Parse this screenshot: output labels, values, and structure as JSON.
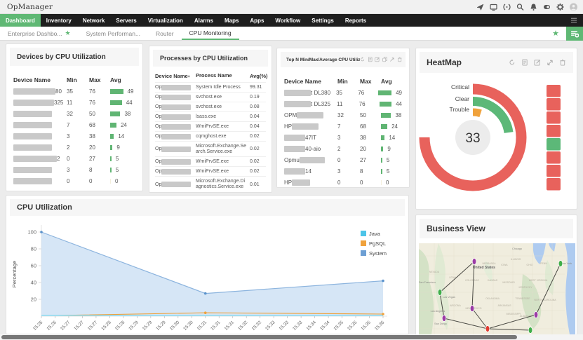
{
  "app": {
    "title": "OpManager"
  },
  "topbar": {
    "icons": [
      "send-icon",
      "monitor-icon",
      "sync-icon",
      "search-icon",
      "bell-icon",
      "video-icon",
      "gear-icon",
      "avatar-icon"
    ]
  },
  "nav": {
    "items": [
      "Dashboard",
      "Inventory",
      "Network",
      "Servers",
      "Virtualization",
      "Alarms",
      "Maps",
      "Apps",
      "Workflow",
      "Settings",
      "Reports"
    ],
    "active": "Dashboard"
  },
  "subtabs": [
    {
      "label": "Enterprise Dashbo...",
      "starred": true,
      "active": false
    },
    {
      "label": "System Performan...",
      "starred": false,
      "active": false
    },
    {
      "label": "Router",
      "starred": false,
      "active": false
    },
    {
      "label": "CPU Monitoring",
      "starred": false,
      "active": true
    }
  ],
  "accent_green": "#5fb874",
  "widgets": {
    "devices": {
      "title": "Devices by CPU Utilization",
      "columns": [
        "Device Name",
        "Min",
        "Max",
        "Avg"
      ],
      "rows": [
        {
          "name_prefix": "",
          "name_suffix": "80",
          "mask_w": 60,
          "min": 35,
          "max": 76,
          "avg": 49
        },
        {
          "name_prefix": "",
          "name_suffix": "325",
          "mask_w": 58,
          "min": 11,
          "max": 76,
          "avg": 44
        },
        {
          "name_prefix": "",
          "name_suffix": "",
          "mask_w": 55,
          "min": 32,
          "max": 50,
          "avg": 38
        },
        {
          "name_prefix": "",
          "name_suffix": "",
          "mask_w": 55,
          "min": 7,
          "max": 68,
          "avg": 24
        },
        {
          "name_prefix": "",
          "name_suffix": "",
          "mask_w": 55,
          "min": 3,
          "max": 38,
          "avg": 14
        },
        {
          "name_prefix": "",
          "name_suffix": "",
          "mask_w": 55,
          "min": 2,
          "max": 20,
          "avg": 9
        },
        {
          "name_prefix": "",
          "name_suffix": "2",
          "mask_w": 62,
          "min": 0,
          "max": 27,
          "avg": 5
        },
        {
          "name_prefix": "",
          "name_suffix": "",
          "mask_w": 55,
          "min": 3,
          "max": 8,
          "avg": 5
        },
        {
          "name_prefix": "",
          "name_suffix": "",
          "mask_w": 55,
          "min": 0,
          "max": 0,
          "avg": 0
        }
      ]
    },
    "processes": {
      "title": "Processes by CPU Utilization",
      "columns": [
        "Device Name",
        "Process Name",
        "Avg(%)"
      ],
      "rows": [
        {
          "device_prefix": "Op",
          "mask_w": 42,
          "process": "System Idle Process",
          "avg": "99.31"
        },
        {
          "device_prefix": "Op",
          "mask_w": 42,
          "process": "svchost.exe",
          "avg": "0.19"
        },
        {
          "device_prefix": "Op",
          "mask_w": 42,
          "process": "svchost.exe",
          "avg": "0.08"
        },
        {
          "device_prefix": "Op",
          "mask_w": 42,
          "process": "lsass.exe",
          "avg": "0.04"
        },
        {
          "device_prefix": "Op",
          "mask_w": 42,
          "process": "WmiPrvSE.exe",
          "avg": "0.04"
        },
        {
          "device_prefix": "Op",
          "mask_w": 42,
          "process": "cqmghost.exe",
          "avg": "0.02"
        },
        {
          "device_prefix": "Op",
          "mask_w": 42,
          "process": "Microsoft.Exchange.Search.Service.exe",
          "avg": "0.02"
        },
        {
          "device_prefix": "Op",
          "mask_w": 42,
          "process": "WmiPrvSE.exe",
          "avg": "0.02"
        },
        {
          "device_prefix": "Op",
          "mask_w": 42,
          "process": "WmiPrvSE.exe",
          "avg": "0.02"
        },
        {
          "device_prefix": "Op",
          "mask_w": 42,
          "process": "Microsoft.Exchange.Diagnostics.Service.exe",
          "avg": "0.01"
        }
      ]
    },
    "topn": {
      "title": "Top N Min/Max/Average CPU Utiliza",
      "columns": [
        "Device Name",
        "Min",
        "Max",
        "Avg"
      ],
      "header_icons": [
        "refresh-icon",
        "report-icon",
        "edit-icon",
        "copy-icon",
        "link-icon",
        "trash-icon"
      ],
      "rows": [
        {
          "name_prefix": "",
          "name_suffix": "t DL380",
          "mask_w": 38,
          "min": 35,
          "max": 76,
          "avg": 49
        },
        {
          "name_prefix": "",
          "name_suffix": "t DL325",
          "mask_w": 38,
          "min": 11,
          "max": 76,
          "avg": 44
        },
        {
          "name_prefix": "OPM",
          "name_suffix": "",
          "mask_w": 38,
          "min": 32,
          "max": 50,
          "avg": 38
        },
        {
          "name_prefix": "HP",
          "name_suffix": "",
          "mask_w": 38,
          "min": 7,
          "max": 68,
          "avg": 24
        },
        {
          "name_prefix": "",
          "name_suffix": "47IT",
          "mask_w": 30,
          "min": 3,
          "max": 38,
          "avg": 14
        },
        {
          "name_prefix": "",
          "name_suffix": "40-aio",
          "mask_w": 30,
          "min": 2,
          "max": 20,
          "avg": 9
        },
        {
          "name_prefix": "Opmu",
          "name_suffix": "",
          "mask_w": 36,
          "min": 0,
          "max": 27,
          "avg": 5
        },
        {
          "name_prefix": "",
          "name_suffix": "14",
          "mask_w": 30,
          "min": 3,
          "max": 8,
          "avg": 5
        },
        {
          "name_prefix": "HP",
          "name_suffix": "",
          "mask_w": 26,
          "min": 0,
          "max": 0,
          "avg": 0
        }
      ]
    },
    "heatmap": {
      "title": "HeatMap",
      "header_icons": [
        "refresh-icon",
        "report-icon",
        "edit-icon",
        "expand-icon",
        "trash-icon"
      ],
      "center_value": "33",
      "legend": [
        "Critical",
        "Clear",
        "Trouble"
      ],
      "colors": {
        "critical": "#e8625c",
        "clear": "#5cb878",
        "trouble": "#f0a23c"
      },
      "cells": [
        "critical",
        "critical",
        "critical",
        "critical",
        "clear",
        "critical",
        "critical",
        "critical"
      ]
    },
    "cpu": {
      "title": "CPU Utilization"
    },
    "business": {
      "title": "Business View"
    }
  },
  "chart_data": [
    {
      "type": "area",
      "title": "CPU Utilization",
      "ylabel": "Percentage",
      "ylim": [
        0,
        100
      ],
      "yticks": [
        20,
        40,
        60,
        80,
        100
      ],
      "x": [
        "15:26",
        "15:26",
        "15:27",
        "15:27",
        "15:27",
        "15:28",
        "15:28",
        "15:29",
        "15:29",
        "15:29",
        "15:30",
        "15:30",
        "15:31",
        "15:31",
        "15:31",
        "15:32",
        "15:32",
        "15:33",
        "15:33",
        "15:33",
        "15:34",
        "15:34",
        "15:35",
        "15:35",
        "15:35",
        "15:36"
      ],
      "legend_position": "top-right",
      "series": [
        {
          "name": "Java",
          "color": "#4cc4e8",
          "points": [
            {
              "i": 0,
              "v": 1
            },
            {
              "i": 12,
              "v": 1
            },
            {
              "i": 25,
              "v": 1
            }
          ]
        },
        {
          "name": "PgSQL",
          "color": "#f0a23c",
          "points": [
            {
              "i": 0,
              "v": 0.5
            },
            {
              "i": 12,
              "v": 4
            },
            {
              "i": 25,
              "v": 2.5
            }
          ]
        },
        {
          "name": "System",
          "color": "#6d9fd4",
          "points": [
            {
              "i": 0,
              "v": 100
            },
            {
              "i": 12,
              "v": 27
            },
            {
              "i": 25,
              "v": 42
            }
          ]
        }
      ]
    },
    {
      "type": "donut",
      "title": "HeatMap",
      "center_value": "33",
      "rings": [
        {
          "label": "Critical",
          "color": "#e8625c",
          "sweep_deg": 270
        },
        {
          "label": "Clear",
          "color": "#5cb878",
          "sweep_deg": 82
        },
        {
          "label": "Trouble",
          "color": "#f0a23c",
          "sweep_deg": 18
        }
      ],
      "cells": [
        "critical",
        "critical",
        "critical",
        "critical",
        "clear",
        "critical",
        "critical",
        "critical"
      ]
    }
  ],
  "map": {
    "region_label": "United States",
    "city_labels": [
      "Chicago",
      "San Francisco",
      "Las Vegas",
      "Los Angeles",
      "San Diego",
      "New York"
    ],
    "state_labels": [
      "NEBRASKA",
      "ILLINOIS",
      "NEVADA",
      "UTAH",
      "COLORADO",
      "KANSAS",
      "MISSOURI",
      "INDIANA",
      "KENTUCKY",
      "WEST VIRGINIA",
      "OKLAHOMA",
      "TENNESSEE",
      "NORTH CAROLINA",
      "ARIZONA",
      "NEW MEXICO",
      "ARKANSAS",
      "MISSISSIPPI",
      "ALABAMA",
      "GEORGIA",
      "SOUTH CAROLINA",
      "CALIFORNIA",
      "IOWA",
      "OHIO",
      "PENN",
      "TEXAS"
    ],
    "node_colors": {
      "maintenance": "#9b3ba5",
      "clear": "#3fae49",
      "critical": "#e03c31"
    }
  }
}
